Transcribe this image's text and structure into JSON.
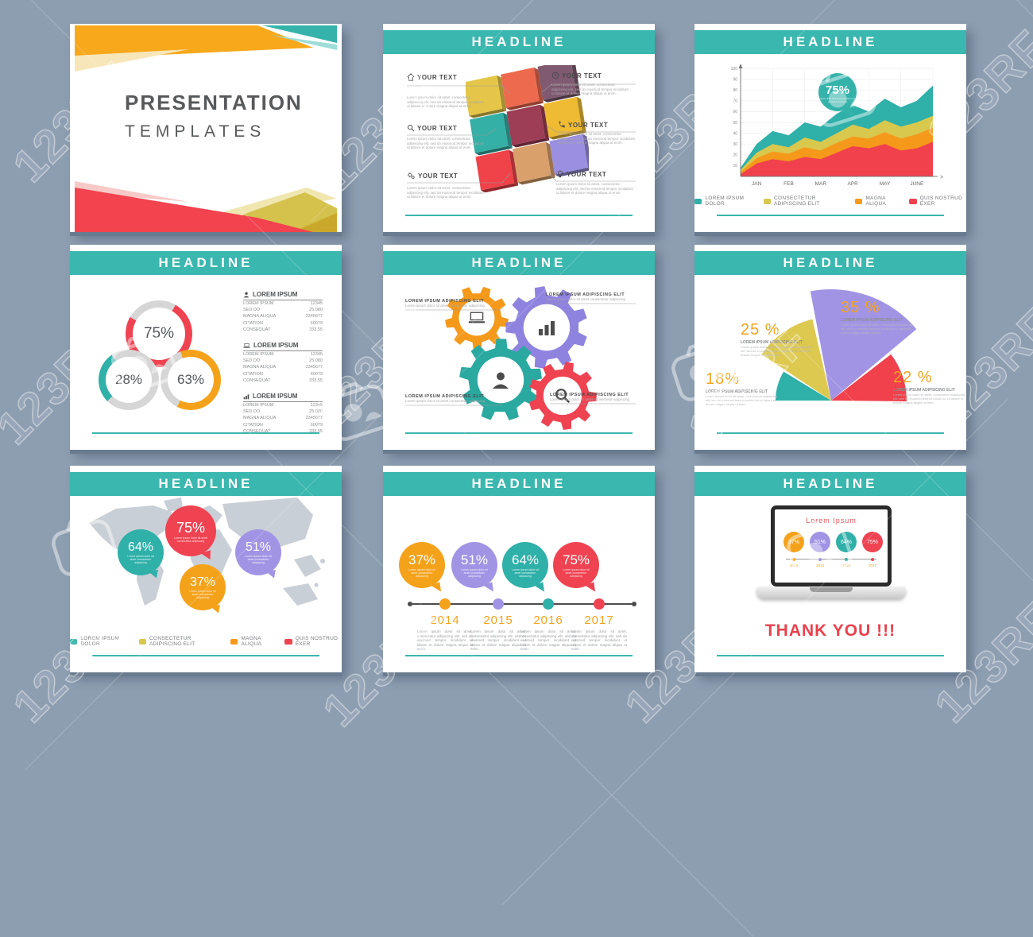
{
  "headline": "HEADLINE",
  "filler_small": "Lorem ipsum dolor sit amet, consectetur adipiscing elit, sed do eiusmod tempor incididunt ut labore et dolore magna aliqua ut enim.",
  "filler_tiny": "Lorem ipsum dolor sit amet consectetur adipiscing",
  "watermark": {
    "text": "123RF",
    "icon": "123rf-camera-icon"
  },
  "colors": {
    "background": "#8d9eb1",
    "banner_teal": "#3ab7ae",
    "teal": "#2fb0a9",
    "yellow": "#d8c84e",
    "orange": "#f5991b",
    "red": "#ef4352",
    "purple": "#a294e4",
    "map_gray": "#c9cfd6",
    "text_dark": "#57585a",
    "label_orange": "#f2a41d"
  },
  "legend": [
    {
      "label": "LOREM IPSUM DOLOR",
      "color": "#2fb0a9"
    },
    {
      "label": "CONSECTETUR ADIPISCING ELIT",
      "color": "#d8c84e"
    },
    {
      "label": "MAGNA ALIQUA",
      "color": "#f5991b"
    },
    {
      "label": "QUIS NOSTRUD EXER",
      "color": "#ef4352"
    }
  ],
  "slides": {
    "cover": {
      "title_line1": "PRESENTATION",
      "title_line2": "TEMPLATES"
    },
    "cubes": {
      "left_items": [
        {
          "icon": "home-icon",
          "label": "YOUR TEXT"
        },
        {
          "icon": "search-icon",
          "label": "YOUR TEXT"
        },
        {
          "icon": "gears-icon",
          "label": "YOUR TEXT"
        }
      ],
      "right_items": [
        {
          "icon": "clock-icon",
          "label": "YOUR TEXT"
        },
        {
          "icon": "phone-icon",
          "label": "YOUR TEXT"
        },
        {
          "icon": "bulb-icon",
          "label": "YOUR TEXT"
        }
      ],
      "tile_colors": [
        "#e5c648",
        "#ee6a4e",
        "#7f5a70",
        "#35b0a7",
        "#9e3d56",
        "#eebb33",
        "#ef4349",
        "#d9a06b",
        "#9a8fe0"
      ]
    },
    "area": {
      "badge_value": "75%",
      "x_axis_arrow": ">"
    },
    "donuts": {
      "circles": [
        {
          "value": "75%",
          "color": "#ef4352"
        },
        {
          "value": "28%",
          "color": "#2fb0a9"
        },
        {
          "value": "63%",
          "color": "#f5a21b"
        }
      ],
      "rows": [
        [
          "LOREM IPSUM",
          "12345"
        ],
        [
          "SED DO",
          "25.080"
        ],
        [
          "MAGNA ALIQUA",
          "2345677"
        ],
        [
          "CITATION",
          "60079"
        ],
        [
          "CONSEQUAT",
          "333.55"
        ]
      ],
      "lists": [
        {
          "icon": "person-icon",
          "title": "LOREM IPSUM"
        },
        {
          "icon": "laptop-icon",
          "title": "LOREM IPSUM"
        },
        {
          "icon": "bar-chart-icon",
          "title": "LOREM IPSUM"
        }
      ]
    },
    "gears": {
      "callout_title": "LOREM IPSUM ADIPISCING ELIT",
      "gear_colors": [
        "#f5991b",
        "#8f83e0",
        "#2aa9a0",
        "#ef4352"
      ],
      "gear_icons": [
        "laptop-icon",
        "bar-chart-icon",
        "person-icon",
        "search-icon"
      ]
    },
    "fan": {
      "label_title": "LOREM IPSUM ADIPISCING ELIT",
      "slices": [
        {
          "pct": "18%",
          "color": "#2fb0a9"
        },
        {
          "pct": "25 %",
          "color": "#ddc94f"
        },
        {
          "pct": "35 %",
          "color": "#a294e4"
        },
        {
          "pct": "22 %",
          "color": "#f0414d"
        }
      ]
    },
    "map": {
      "bubbles": [
        {
          "pct": "64%",
          "color": "#2fb0a9"
        },
        {
          "pct": "75%",
          "color": "#ef4352"
        },
        {
          "pct": "51%",
          "color": "#a294e4"
        },
        {
          "pct": "37%",
          "color": "#f5a21b"
        }
      ]
    },
    "timeline": {
      "milestones": [
        {
          "pct": "37%",
          "year": "2014",
          "color": "#f5a21b"
        },
        {
          "pct": "51%",
          "year": "2015",
          "color": "#a294e4"
        },
        {
          "pct": "64%",
          "year": "2016",
          "color": "#2fb0a9"
        },
        {
          "pct": "75%",
          "year": "2017",
          "color": "#ef4352"
        }
      ]
    },
    "thankyou": {
      "screen_title": "Lorem Ipsum",
      "message": "THANK YOU !!!",
      "mini_pcts": [
        "37%",
        "51%",
        "64%",
        "75%"
      ],
      "mini_years": [
        "2014",
        "2015",
        "2016",
        "2017"
      ]
    }
  },
  "chart_data": [
    {
      "type": "area",
      "stacked": true,
      "title": "",
      "annotation": "75%",
      "x_labels": [
        "JAN",
        "FEB",
        "MAR",
        "APR",
        "MAY",
        "JUNE"
      ],
      "x_arrow": ">",
      "y_ticks": [
        10,
        20,
        30,
        40,
        50,
        60,
        70,
        80,
        90,
        100
      ],
      "ylim": [
        0,
        100
      ],
      "grid": true,
      "legend_position": "bottom",
      "note": "values are cumulative stacked tops at 13 samples Jan-June",
      "series": [
        {
          "name": "QUIS NOSTRUD EXER",
          "color": "#f0414d",
          "tops": [
            2,
            12,
            16,
            14,
            18,
            16,
            22,
            28,
            26,
            30,
            24,
            26,
            32
          ]
        },
        {
          "name": "MAGNA ALIQUA",
          "color": "#f5991b",
          "tops": [
            4,
            17,
            23,
            21,
            27,
            24,
            31,
            37,
            35,
            41,
            35,
            39,
            45
          ]
        },
        {
          "name": "CONSECTETUR ADIPISCING ELIT",
          "color": "#d8c84e",
          "tops": [
            6,
            22,
            30,
            27,
            36,
            32,
            40,
            48,
            44,
            52,
            46,
            50,
            56
          ]
        },
        {
          "name": "LOREM IPSUM DOLOR",
          "color": "#2fb0a9",
          "tops": [
            8,
            30,
            42,
            38,
            50,
            46,
            58,
            66,
            60,
            72,
            64,
            70,
            84
          ]
        }
      ]
    },
    {
      "type": "pie",
      "variant": "fan-half",
      "labels": [
        "18%",
        "25 %",
        "35 %",
        "22 %"
      ],
      "values": [
        18,
        25,
        35,
        22
      ],
      "colors": [
        "#2fb0a9",
        "#ddc94f",
        "#a294e4",
        "#f0414d"
      ]
    },
    {
      "type": "donut",
      "labels": [
        "75%",
        "28%",
        "63%"
      ],
      "values": [
        75,
        28,
        63
      ],
      "colors": [
        "#ef4352",
        "#2fb0a9",
        "#f5a21b"
      ]
    },
    {
      "type": "map-bubbles",
      "labels": [
        "64%",
        "75%",
        "51%",
        "37%"
      ],
      "values": [
        64,
        75,
        51,
        37
      ],
      "colors": [
        "#2fb0a9",
        "#ef4352",
        "#a294e4",
        "#f5a21b"
      ]
    },
    {
      "type": "timeline",
      "categories": [
        "2014",
        "2015",
        "2016",
        "2017"
      ],
      "values": [
        37,
        51,
        64,
        75
      ],
      "colors": [
        "#f5a21b",
        "#a294e4",
        "#2fb0a9",
        "#ef4352"
      ]
    }
  ]
}
